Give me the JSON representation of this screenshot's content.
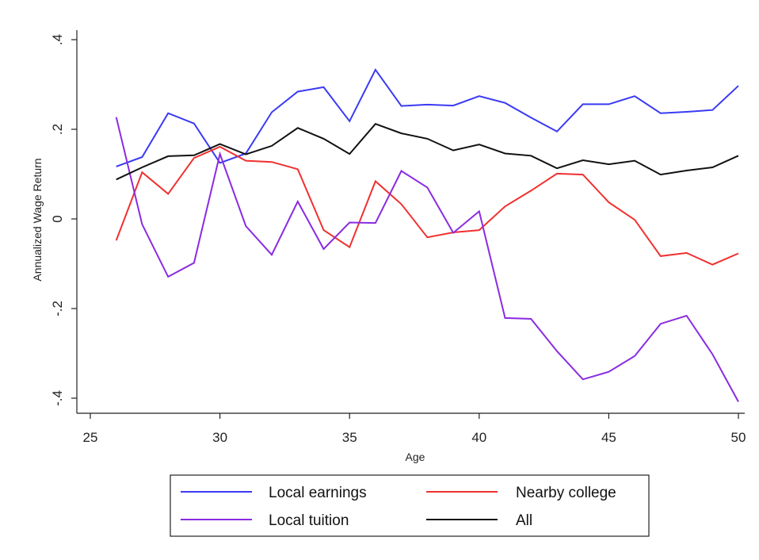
{
  "chart_data": {
    "type": "line",
    "title": "",
    "xlabel": "Age",
    "ylabel": "Annualized Wage Return",
    "xlim": [
      25,
      50
    ],
    "ylim": [
      -0.4,
      0.4
    ],
    "xticks": [
      25,
      30,
      35,
      40,
      45,
      50
    ],
    "xtick_labels": [
      "25",
      "30",
      "35",
      "40",
      "45",
      "50"
    ],
    "yticks": [
      -0.4,
      -0.2,
      0,
      0.2,
      0.4
    ],
    "ytick_labels": [
      "-.4",
      "-.2",
      "0",
      ".2",
      ".4"
    ],
    "grid": false,
    "legend_position": "bottom",
    "x": [
      26,
      27,
      28,
      29,
      30,
      31,
      32,
      33,
      34,
      35,
      36,
      37,
      38,
      39,
      40,
      41,
      42,
      43,
      44,
      45,
      46,
      47,
      48,
      49,
      50
    ],
    "series": [
      {
        "name": "Local earnings",
        "color": "#3a3af5",
        "values": [
          0.117,
          0.138,
          0.236,
          0.213,
          0.125,
          0.146,
          0.238,
          0.284,
          0.294,
          0.218,
          0.333,
          0.252,
          0.255,
          0.253,
          0.274,
          0.259,
          0.226,
          0.195,
          0.256,
          0.256,
          0.274,
          0.236,
          0.239,
          0.243,
          0.297
        ]
      },
      {
        "name": "Nearby college",
        "color": "#f03030",
        "values": [
          -0.048,
          0.104,
          0.056,
          0.136,
          0.161,
          0.13,
          0.127,
          0.111,
          -0.025,
          -0.063,
          0.084,
          0.033,
          -0.041,
          -0.03,
          -0.025,
          0.028,
          0.063,
          0.101,
          0.099,
          0.037,
          -0.002,
          -0.083,
          -0.076,
          -0.102,
          -0.077
        ]
      },
      {
        "name": "Local tuition",
        "color": "#8a2be2",
        "values": [
          0.227,
          -0.012,
          -0.129,
          -0.098,
          0.145,
          -0.016,
          -0.08,
          0.039,
          -0.067,
          -0.008,
          -0.009,
          0.107,
          0.07,
          -0.031,
          0.017,
          -0.221,
          -0.223,
          -0.295,
          -0.358,
          -0.341,
          -0.306,
          -0.234,
          -0.216,
          -0.302,
          -0.408
        ]
      },
      {
        "name": "All",
        "color": "#111111",
        "values": [
          0.088,
          0.115,
          0.14,
          0.142,
          0.167,
          0.144,
          0.163,
          0.203,
          0.179,
          0.145,
          0.212,
          0.191,
          0.179,
          0.153,
          0.166,
          0.146,
          0.141,
          0.113,
          0.131,
          0.122,
          0.13,
          0.099,
          0.108,
          0.115,
          0.141
        ]
      }
    ],
    "legend": [
      {
        "label": "Local earnings",
        "color": "#3a3af5"
      },
      {
        "label": "Nearby college",
        "color": "#f03030"
      },
      {
        "label": "Local tuition",
        "color": "#8a2be2"
      },
      {
        "label": "All",
        "color": "#111111"
      }
    ]
  }
}
